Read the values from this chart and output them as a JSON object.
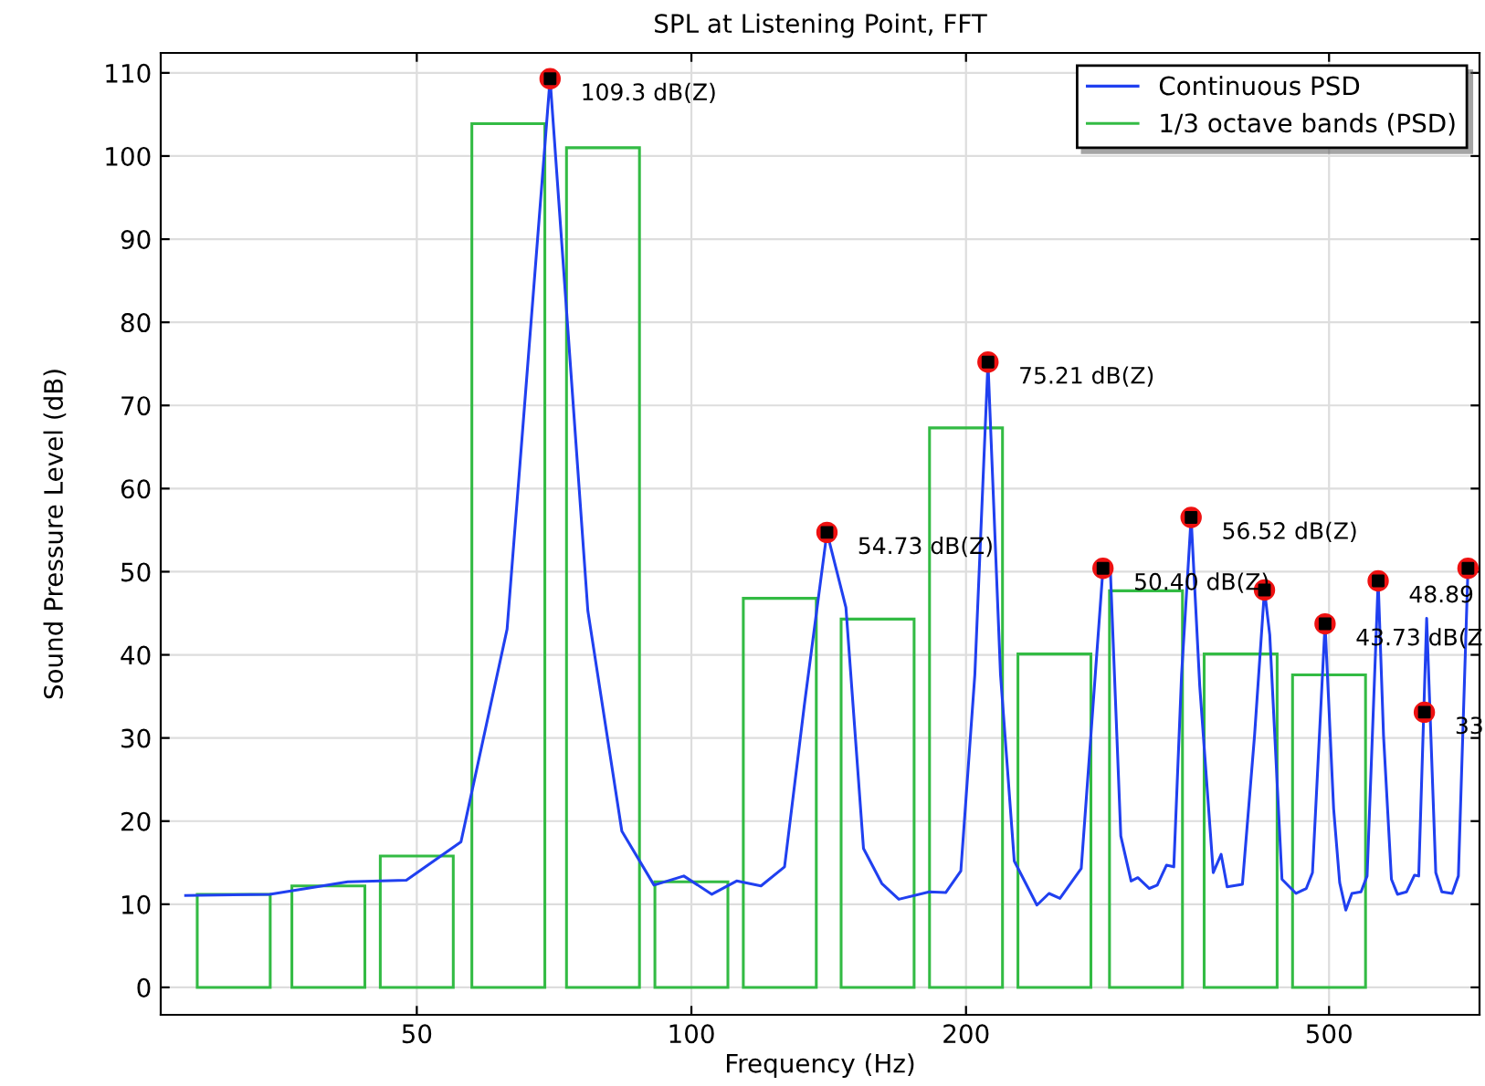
{
  "chart_data": {
    "type": "line",
    "title": "SPL at Listening Point, FFT",
    "xlabel": "Frequency (Hz)",
    "ylabel": "Sound Pressure Level (dB)",
    "log": "x",
    "xlim": [
      26.2,
      731
    ],
    "xticks": [
      50,
      100,
      200,
      500
    ],
    "ylim": [
      -3.3,
      112.4
    ],
    "yticks": [
      0,
      10,
      20,
      30,
      40,
      50,
      60,
      70,
      80,
      90,
      100,
      110
    ],
    "grid": true,
    "legend": "top right",
    "series": [
      {
        "name": "Continuous PSD",
        "color": "#2040f0",
        "x": [
          27.9,
          34.5,
          42.0,
          48.7,
          55.9,
          62.8,
          70.0,
          77.0,
          83.9,
          91.0,
          98.1,
          105.3,
          112.1,
          119.2,
          126.5,
          133,
          140.8,
          147.7,
          154.4,
          161.7,
          168.8,
          182.3,
          190.0,
          197.4,
          204.5,
          211.4,
          218.2,
          225.9,
          239.2,
          246.6,
          253.5,
          267.5,
          282.6,
          288.0,
          295.6,
          303.4,
          308.6,
          317.7,
          324.1,
          331.7,
          337.9,
          344.6,
          353.0,
          360.8,
          373.3,
          380.8,
          386.6,
          401.8,
          414.3,
          424.8,
          430.5,
          444.0,
          460.0,
          472.1,
          479.5,
          495,
          505.8,
          513.6,
          521.6,
          529.7,
          542.0,
          550.4,
          566,
          573.7,
          585.3,
          594.3,
          608.1,
          620.4,
          627.0,
          639.7,
          654.6,
          664.7,
          682.3,
          693.0,
          710
        ],
        "values": [
          11.05,
          11.2,
          12.7,
          12.9,
          17.5,
          43.1,
          109.3,
          45.3,
          18.8,
          12.3,
          13.4,
          11.2,
          12.8,
          12.2,
          14.5,
          34.0,
          54.73,
          45.7,
          16.7,
          12.5,
          10.6,
          11.5,
          11.4,
          14.0,
          37.6,
          75.21,
          37.6,
          15.2,
          9.9,
          11.3,
          10.7,
          14.3,
          50.4,
          49.8,
          18.2,
          12.8,
          13.2,
          11.9,
          12.3,
          14.7,
          14.5,
          37.6,
          56.52,
          36.2,
          13.8,
          16.0,
          12.1,
          12.4,
          30.3,
          47.8,
          42.4,
          13.0,
          11.3,
          11.9,
          13.8,
          43.73,
          21.5,
          12.6,
          9.3,
          11.3,
          11.5,
          13.4,
          48.89,
          30.3,
          13.0,
          11.2,
          11.5,
          13.5,
          13.4,
          44.4,
          13.8,
          11.5,
          11.3,
          13.4,
          50.4
        ]
      },
      {
        "name": "1/3 octave bands (PSD)",
        "type": "bar",
        "color": "#33bb44",
        "x": [
          31.5,
          40,
          50,
          63,
          80,
          100,
          125,
          160,
          200,
          250,
          315,
          400,
          500
        ],
        "values": [
          11.2,
          12.2,
          15.8,
          103.9,
          101.0,
          12.7,
          46.8,
          44.3,
          67.3,
          40.1,
          47.7,
          40.1,
          37.6
        ]
      },
      {
        "type": "scatter",
        "marker": "circle",
        "color": "#ee1111",
        "x": [
          70.0,
          140.8,
          211.4,
          282.6,
          353.0,
          424.8,
          495,
          566,
          636,
          710
        ],
        "values": [
          109.3,
          54.73,
          75.21,
          50.4,
          56.52,
          47.8,
          43.73,
          48.89,
          33.1,
          50.4
        ]
      }
    ],
    "annotations": [
      {
        "text": "109.3 dB(Z)",
        "x": 70.0,
        "y": 109.3
      },
      {
        "text": "54.73 dB(Z)",
        "x": 140.8,
        "y": 54.73
      },
      {
        "text": "75.21 dB(Z)",
        "x": 211.4,
        "y": 75.21
      },
      {
        "text": "50.40 dB(Z)",
        "x": 282.6,
        "y": 50.4
      },
      {
        "text": "56.52 dB(Z)",
        "x": 353.0,
        "y": 56.52
      },
      {
        "text": "43.73 dB(Z",
        "x": 495,
        "y": 43.73
      },
      {
        "text": "48.89",
        "x": 566,
        "y": 48.89
      },
      {
        "text": "33",
        "x": 636,
        "y": 33.1
      }
    ]
  }
}
